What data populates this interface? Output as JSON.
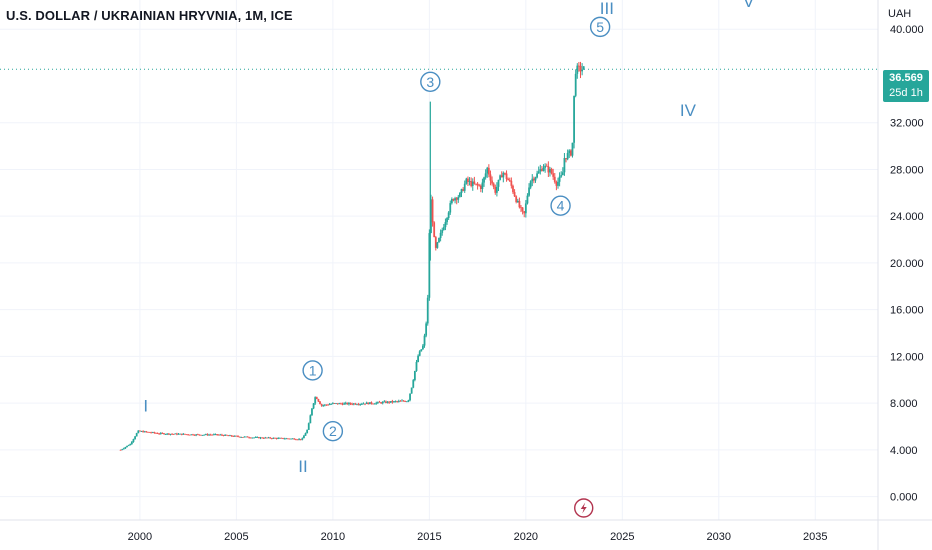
{
  "header": {
    "title": "U.S. DOLLAR / UKRAINIAN HRYVNIA, 1M, ICE",
    "unit": "UAH"
  },
  "price_tag": {
    "last_price": "36.569",
    "countdown": "25d 1h",
    "color": "#26a69a"
  },
  "colors": {
    "up": "#26a69a",
    "down": "#ef5350",
    "wave_label": "#4a8ec2",
    "grid": "#f0f3fa",
    "last_line": "#26a69a",
    "event_icon": "#b2344f"
  },
  "chart_data": {
    "type": "candlestick",
    "xlabel": "",
    "ylabel": "",
    "y_ticks": [
      "0.000",
      "4.000",
      "8.000",
      "12.000",
      "16.000",
      "20.000",
      "24.000",
      "28.000",
      "32.000",
      "40.000"
    ],
    "x_ticks": [
      "2000",
      "2005",
      "2010",
      "2015",
      "2020",
      "2025",
      "2030",
      "2035"
    ],
    "ylim": [
      -2.0,
      42.5
    ],
    "xlim": [
      1992.75,
      2038.25
    ],
    "last_price": 36.569,
    "series": [
      {
        "points": [
          [
            1999.0,
            4.0
          ],
          [
            1999.5,
            4.5
          ],
          [
            1999.9,
            5.6
          ],
          [
            2000.5,
            5.5
          ],
          [
            2001.0,
            5.4
          ],
          [
            2002.0,
            5.35
          ],
          [
            2003.0,
            5.3
          ],
          [
            2004.0,
            5.3
          ],
          [
            2005.0,
            5.15
          ],
          [
            2006.0,
            5.05
          ],
          [
            2007.0,
            5.0
          ],
          [
            2008.0,
            4.95
          ],
          [
            2008.4,
            4.9
          ],
          [
            2008.7,
            5.8
          ],
          [
            2008.9,
            7.5
          ],
          [
            2009.1,
            8.6
          ],
          [
            2009.4,
            7.8
          ],
          [
            2010.0,
            7.95
          ],
          [
            2011.0,
            7.95
          ],
          [
            2012.0,
            8.0
          ],
          [
            2013.0,
            8.1
          ],
          [
            2013.9,
            8.2
          ],
          [
            2014.1,
            9.5
          ],
          [
            2014.4,
            12.0
          ],
          [
            2014.7,
            13.0
          ],
          [
            2014.9,
            15.8
          ],
          [
            2015.05,
            26.0
          ],
          [
            2015.3,
            21.0
          ],
          [
            2015.6,
            22.5
          ],
          [
            2015.9,
            24.0
          ],
          [
            2016.2,
            25.5
          ],
          [
            2016.6,
            25.8
          ],
          [
            2016.9,
            27.0
          ],
          [
            2017.3,
            26.7
          ],
          [
            2017.7,
            26.5
          ],
          [
            2018.0,
            28.1
          ],
          [
            2018.4,
            26.1
          ],
          [
            2018.8,
            27.8
          ],
          [
            2019.2,
            26.8
          ],
          [
            2019.6,
            25.0
          ],
          [
            2019.9,
            24.0
          ],
          [
            2020.2,
            27.0
          ],
          [
            2020.6,
            27.6
          ],
          [
            2020.9,
            28.3
          ],
          [
            2021.3,
            27.8
          ],
          [
            2021.6,
            26.8
          ],
          [
            2021.9,
            27.5
          ],
          [
            2022.0,
            29.0
          ],
          [
            2022.2,
            29.3
          ],
          [
            2022.4,
            29.5
          ],
          [
            2022.55,
            36.5
          ],
          [
            2022.9,
            36.6
          ],
          [
            2023.0,
            36.57
          ]
        ]
      }
    ],
    "annotations": [
      {
        "label": "I",
        "x": 2000.3,
        "y": 7.8,
        "style": "plain"
      },
      {
        "label": "II",
        "x": 2008.45,
        "y": 2.6,
        "style": "plain"
      },
      {
        "label": "III",
        "x": 2024.2,
        "y": 41.8,
        "style": "plain"
      },
      {
        "label": "IV",
        "x": 2028.4,
        "y": 33.1,
        "style": "plain"
      },
      {
        "label": "V",
        "x": 2031.55,
        "y": 42.4,
        "style": "plain"
      },
      {
        "label": "1",
        "x": 2008.95,
        "y": 10.8,
        "style": "circled"
      },
      {
        "label": "2",
        "x": 2010.0,
        "y": 5.6,
        "style": "circled"
      },
      {
        "label": "3",
        "x": 2015.05,
        "y": 35.5,
        "style": "circled"
      },
      {
        "label": "4",
        "x": 2021.8,
        "y": 24.9,
        "style": "circled"
      },
      {
        "label": "5",
        "x": 2023.85,
        "y": 40.2,
        "style": "circled"
      }
    ]
  }
}
